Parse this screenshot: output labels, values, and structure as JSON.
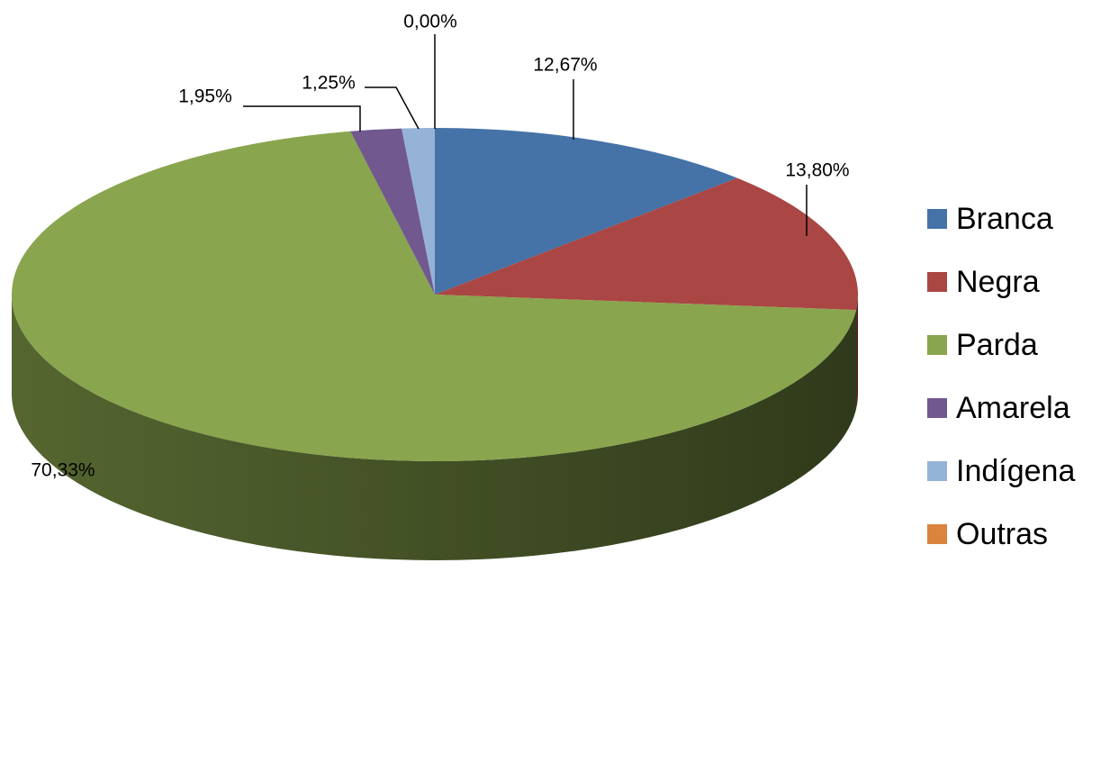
{
  "chart_data": {
    "type": "pie",
    "categories": [
      "Branca",
      "Negra",
      "Parda",
      "Amarela",
      "Indígena",
      "Outras"
    ],
    "values": [
      12.67,
      13.8,
      70.33,
      1.95,
      1.25,
      0.0
    ],
    "value_labels": [
      "12,67%",
      "13,80%",
      "70,33%",
      "1,95%",
      "1,25%",
      "0,00%"
    ],
    "colors": [
      "#4572a7",
      "#aa4643",
      "#89a54e",
      "#71588f",
      "#95b3d7",
      "#db843d"
    ],
    "legend": "right"
  }
}
